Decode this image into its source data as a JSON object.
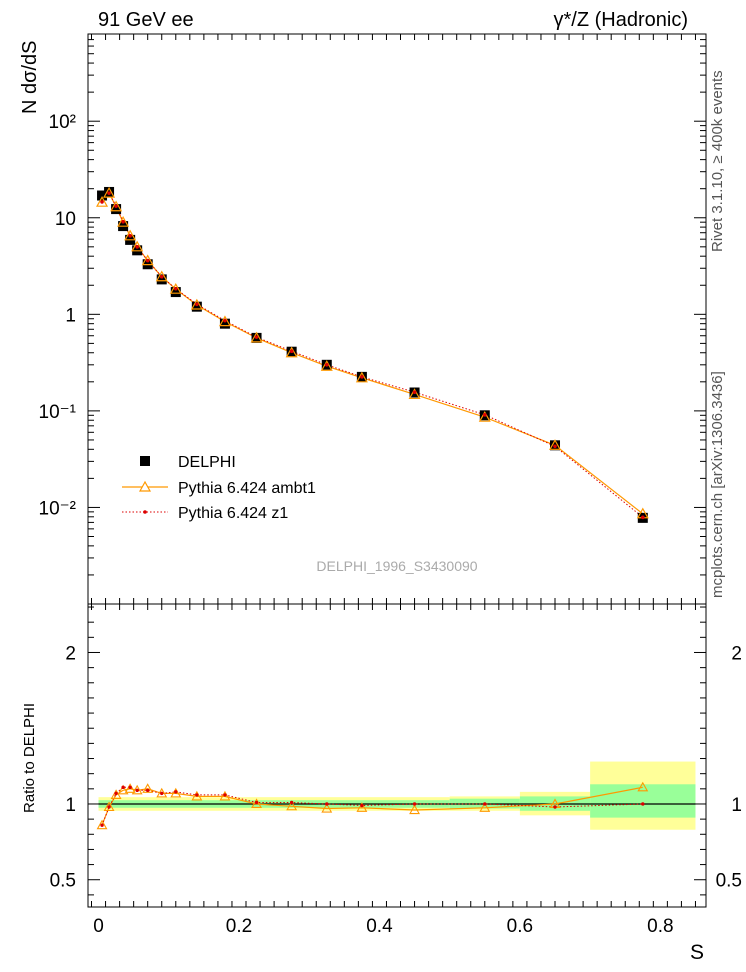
{
  "header": {
    "left": "91 GeV ee",
    "right": "γ*/Z (Hadronic)"
  },
  "side_text": {
    "rivet": "Rivet 3.1.10, ≥ 400k events",
    "mcplots": "mcplots.cern.ch [arXiv:1306.3436]"
  },
  "watermark": "DELPHI_1996_S3430090",
  "chart_data": [
    {
      "type": "scatter",
      "panel": "main",
      "ylabel": "N dσ/dS",
      "log_y": true,
      "ylim": [
        0.001,
        800
      ],
      "xlim": [
        -0.015,
        0.865
      ],
      "y_tick_labels": [
        "10⁻²",
        "10⁻¹",
        "1",
        "10",
        "10²"
      ],
      "legend": {
        "placement": "bottom-left"
      },
      "series": [
        {
          "name": "DELPHI",
          "color": "#000000",
          "marker": "square",
          "x": [
            0.005,
            0.015,
            0.025,
            0.035,
            0.045,
            0.055,
            0.07,
            0.09,
            0.11,
            0.14,
            0.18,
            0.225,
            0.275,
            0.325,
            0.375,
            0.45,
            0.55,
            0.65,
            0.775
          ],
          "y": [
            17.0,
            18.5,
            12.3,
            8.2,
            5.9,
            4.6,
            3.3,
            2.3,
            1.7,
            1.2,
            0.8,
            0.57,
            0.41,
            0.3,
            0.225,
            0.155,
            0.09,
            0.044,
            0.0078
          ]
        },
        {
          "name": "Pythia 6.424 ambt1",
          "color": "#ff9900",
          "marker": "triangle",
          "x": [
            0.005,
            0.015,
            0.025,
            0.035,
            0.045,
            0.055,
            0.07,
            0.09,
            0.11,
            0.14,
            0.18,
            0.225,
            0.275,
            0.325,
            0.375,
            0.45,
            0.55,
            0.65,
            0.775
          ],
          "y": [
            14.5,
            18.0,
            13.0,
            9.0,
            6.5,
            5.0,
            3.6,
            2.45,
            1.82,
            1.25,
            0.84,
            0.57,
            0.4,
            0.29,
            0.22,
            0.148,
            0.086,
            0.044,
            0.0086
          ]
        },
        {
          "name": "Pythia 6.424 z1",
          "color": "#dd0000",
          "marker": "dot",
          "x": [
            0.005,
            0.015,
            0.025,
            0.035,
            0.045,
            0.055,
            0.07,
            0.09,
            0.11,
            0.14,
            0.18,
            0.225,
            0.275,
            0.325,
            0.375,
            0.45,
            0.55,
            0.65,
            0.775
          ],
          "y": [
            14.6,
            18.0,
            13.2,
            9.1,
            6.5,
            5.0,
            3.6,
            2.45,
            1.84,
            1.27,
            0.86,
            0.58,
            0.415,
            0.3,
            0.225,
            0.156,
            0.091,
            0.043,
            0.0079
          ]
        }
      ]
    },
    {
      "type": "line",
      "panel": "ratio",
      "xlabel": "S",
      "ylabel": "Ratio to DELPHI",
      "xlim": [
        -0.015,
        0.865
      ],
      "ylim": [
        0.32,
        2.32
      ],
      "x_tick_labels": [
        "0",
        "0.2",
        "0.4",
        "0.6",
        "0.8"
      ],
      "y_tick_labels": [
        "0.5",
        "1",
        "2"
      ],
      "bands": [
        {
          "x0": 0.0,
          "x1": 0.5,
          "inner": [
            0.975,
            1.025
          ],
          "outer": [
            0.955,
            1.045
          ]
        },
        {
          "x0": 0.5,
          "x1": 0.6,
          "inner": [
            0.97,
            1.035
          ],
          "outer": [
            0.955,
            1.05
          ]
        },
        {
          "x0": 0.6,
          "x1": 0.7,
          "inner": [
            0.955,
            1.05
          ],
          "outer": [
            0.925,
            1.08
          ]
        },
        {
          "x0": 0.7,
          "x1": 0.85,
          "inner": [
            0.91,
            1.13
          ],
          "outer": [
            0.83,
            1.28
          ]
        }
      ],
      "series": [
        {
          "name": "Pythia 6.424 ambt1",
          "color": "#ff9900",
          "x": [
            0.005,
            0.015,
            0.025,
            0.035,
            0.045,
            0.055,
            0.07,
            0.09,
            0.11,
            0.14,
            0.18,
            0.225,
            0.275,
            0.325,
            0.375,
            0.45,
            0.55,
            0.65,
            0.775
          ],
          "y": [
            0.86,
            0.98,
            1.06,
            1.09,
            1.1,
            1.09,
            1.1,
            1.07,
            1.07,
            1.05,
            1.05,
            1.0,
            0.985,
            0.97,
            0.975,
            0.96,
            0.975,
            1.0,
            1.11
          ]
        },
        {
          "name": "Pythia 6.424 z1",
          "color": "#dd0000",
          "x": [
            0.005,
            0.015,
            0.025,
            0.035,
            0.045,
            0.055,
            0.07,
            0.09,
            0.11,
            0.14,
            0.18,
            0.225,
            0.275,
            0.325,
            0.375,
            0.45,
            0.55,
            0.65,
            0.775
          ],
          "y": [
            0.86,
            0.98,
            1.07,
            1.11,
            1.11,
            1.09,
            1.09,
            1.07,
            1.08,
            1.06,
            1.06,
            1.01,
            1.01,
            1.0,
            0.99,
            1.0,
            1.0,
            0.98,
            1.0
          ]
        }
      ]
    }
  ]
}
